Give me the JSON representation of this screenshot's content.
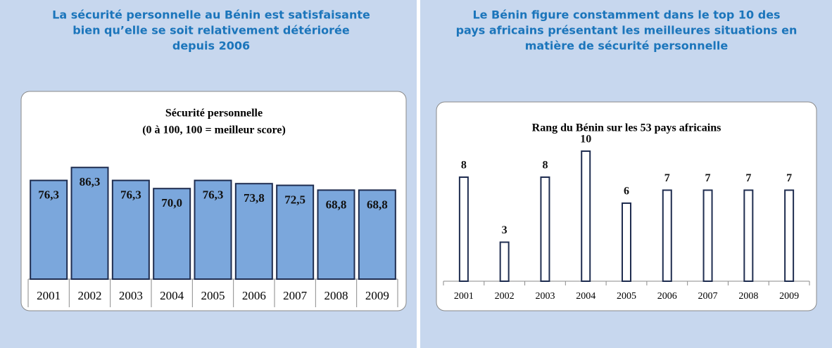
{
  "headings": [
    [
      "La sécurité personnelle au Bénin est satisfaisante",
      "bien qu’elle se soit relativement détériorée",
      "depuis 2006"
    ],
    [
      "Le Bénin figure constamment dans le top 10 des",
      "pays africains présentant les meilleures situations en",
      "matière de sécurité personnelle"
    ]
  ],
  "chart_data": [
    {
      "type": "bar",
      "title": "Sécurité personnelle",
      "subtitle": "(0 à 100, 100 = meilleur score)",
      "categories": [
        "2001",
        "2002",
        "2003",
        "2004",
        "2005",
        "2006",
        "2007",
        "2008",
        "2009"
      ],
      "values": [
        76.3,
        86.3,
        76.3,
        70.0,
        76.3,
        73.8,
        72.5,
        68.8,
        68.8
      ],
      "value_labels": [
        "76,3",
        "86,3",
        "76,3",
        "70,0",
        "76,3",
        "73,8",
        "72,5",
        "68,8",
        "68,8"
      ],
      "color": "#7ba7dc",
      "ylim": [
        0,
        100
      ]
    },
    {
      "type": "bar",
      "title": "Rang du Bénin sur les 53 pays africains",
      "categories": [
        "2001",
        "2002",
        "2003",
        "2004",
        "2005",
        "2006",
        "2007",
        "2008",
        "2009"
      ],
      "values": [
        8,
        3,
        8,
        10,
        6,
        7,
        7,
        7,
        7
      ],
      "color": "#ffffff",
      "ylim": [
        0,
        12
      ]
    }
  ]
}
